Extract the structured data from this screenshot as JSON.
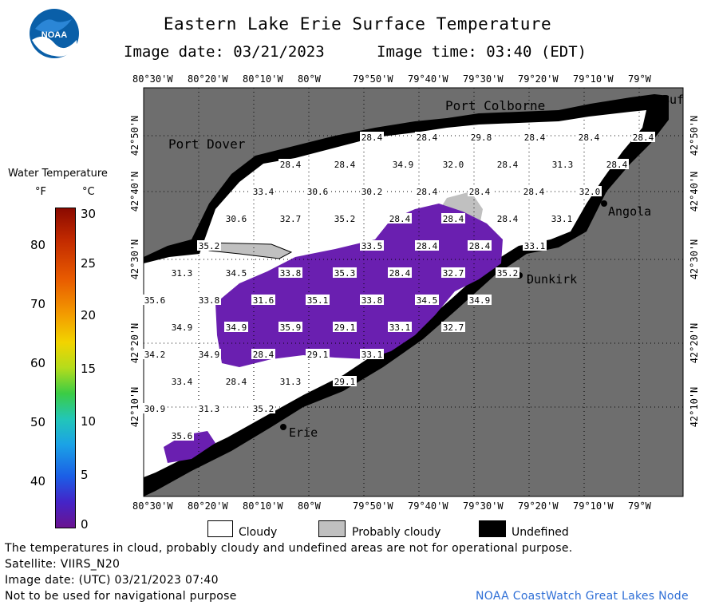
{
  "header": {
    "title": "Eastern Lake Erie Surface Temperature",
    "image_date": "Image date: 03/21/2023",
    "image_time": "Image time: 03:40 (EDT)",
    "logo_text": "NOAA"
  },
  "map": {
    "lon_labels": [
      "80°30'W",
      "80°20'W",
      "80°10'W",
      "80°W",
      "79°50'W",
      "79°40'W",
      "79°30'W",
      "79°20'W",
      "79°10'W",
      "79°W"
    ],
    "lat_labels": [
      "42°50'N",
      "42°40'N",
      "42°30'N",
      "42°20'N",
      "42°10'N"
    ],
    "places": [
      {
        "name": "Port Colborne"
      },
      {
        "name": "Port Dover"
      },
      {
        "name": "Angola"
      },
      {
        "name": "Dunkirk"
      },
      {
        "name": "Erie"
      },
      {
        "name": "Buf"
      }
    ],
    "temp_labels": [
      "28.4",
      "28.4",
      "29.8",
      "28.4",
      "28.4",
      "28.4",
      "34.9",
      "32.0",
      "28.4",
      "28.4",
      "28.4",
      "31.3",
      "28.4",
      "33.4",
      "30.6",
      "30.2",
      "28.4",
      "28.4",
      "28.4",
      "32.0",
      "30.6",
      "32.7",
      "35.2",
      "28.4",
      "28.4",
      "28.4",
      "33.1",
      "35.2",
      "33.5",
      "28.4",
      "28.4",
      "33.1",
      "31.3",
      "34.5",
      "33.8",
      "35.3",
      "28.4",
      "32.7",
      "35.2",
      "35.6",
      "33.8",
      "31.6",
      "35.1",
      "33.8",
      "34.5",
      "34.9",
      "34.9",
      "34.9",
      "35.9",
      "29.1",
      "33.1",
      "32.7",
      "34.2",
      "34.9",
      "28.4",
      "29.1",
      "33.1",
      "33.4",
      "28.4",
      "31.3",
      "29.1",
      "30.9",
      "31.3",
      "35.2",
      "35.6"
    ],
    "colors": {
      "land": "#6e6e6e",
      "cloud": "#ffffff",
      "undefined": "#000000",
      "probably_cloudy": "#c0c0c0",
      "warm": "#6a1fb0"
    }
  },
  "legend": {
    "title": "Water Temperature",
    "f_unit": "°F",
    "c_unit": "°C",
    "f_ticks": [
      "80",
      "70",
      "60",
      "50",
      "40"
    ],
    "c_ticks": [
      "30",
      "25",
      "20",
      "15",
      "10",
      "5",
      "0"
    ],
    "key": [
      {
        "label": "Cloudy"
      },
      {
        "label": "Probably cloudy"
      },
      {
        "label": "Undefined"
      }
    ]
  },
  "footer": {
    "disclaimer": "The temperatures in cloud, probably cloudy and undefined areas are not for operational purpose.",
    "satellite": "Satellite: VIIRS_N20",
    "utc_date": "Image date: (UTC) 03/21/2023  07:40",
    "nav_warning": "Not to be used for navigational purpose",
    "credit": "NOAA CoastWatch Great Lakes Node"
  }
}
